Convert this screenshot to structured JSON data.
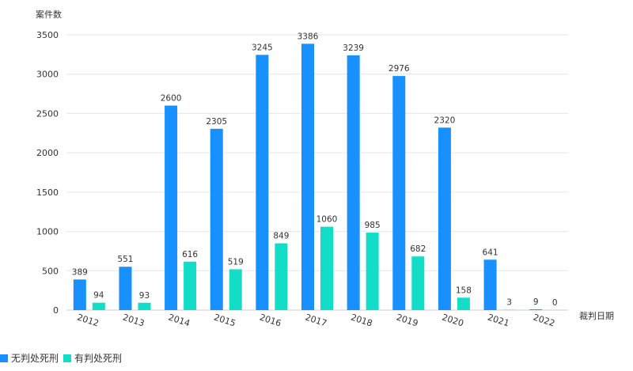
{
  "chart_data": {
    "type": "bar",
    "ylabel": "案件数",
    "xlabel": "裁判日期",
    "ylim": [
      0,
      3500
    ],
    "yticks": [
      0,
      500,
      1000,
      1500,
      2000,
      2500,
      3000,
      3500
    ],
    "grid": true,
    "legend_position": "bottom-left",
    "categories": [
      "2012",
      "2013",
      "2014",
      "2015",
      "2016",
      "2017",
      "2018",
      "2019",
      "2020",
      "2021",
      "2022"
    ],
    "series": [
      {
        "name": "无判处死刑",
        "color": "#1890ff",
        "values": [
          389,
          551,
          2600,
          2305,
          3245,
          3386,
          3239,
          2976,
          2320,
          641,
          9
        ]
      },
      {
        "name": "有判处死刑",
        "color": "#13dcc7",
        "values": [
          94,
          93,
          616,
          519,
          849,
          1060,
          985,
          682,
          158,
          3,
          0
        ]
      }
    ]
  }
}
